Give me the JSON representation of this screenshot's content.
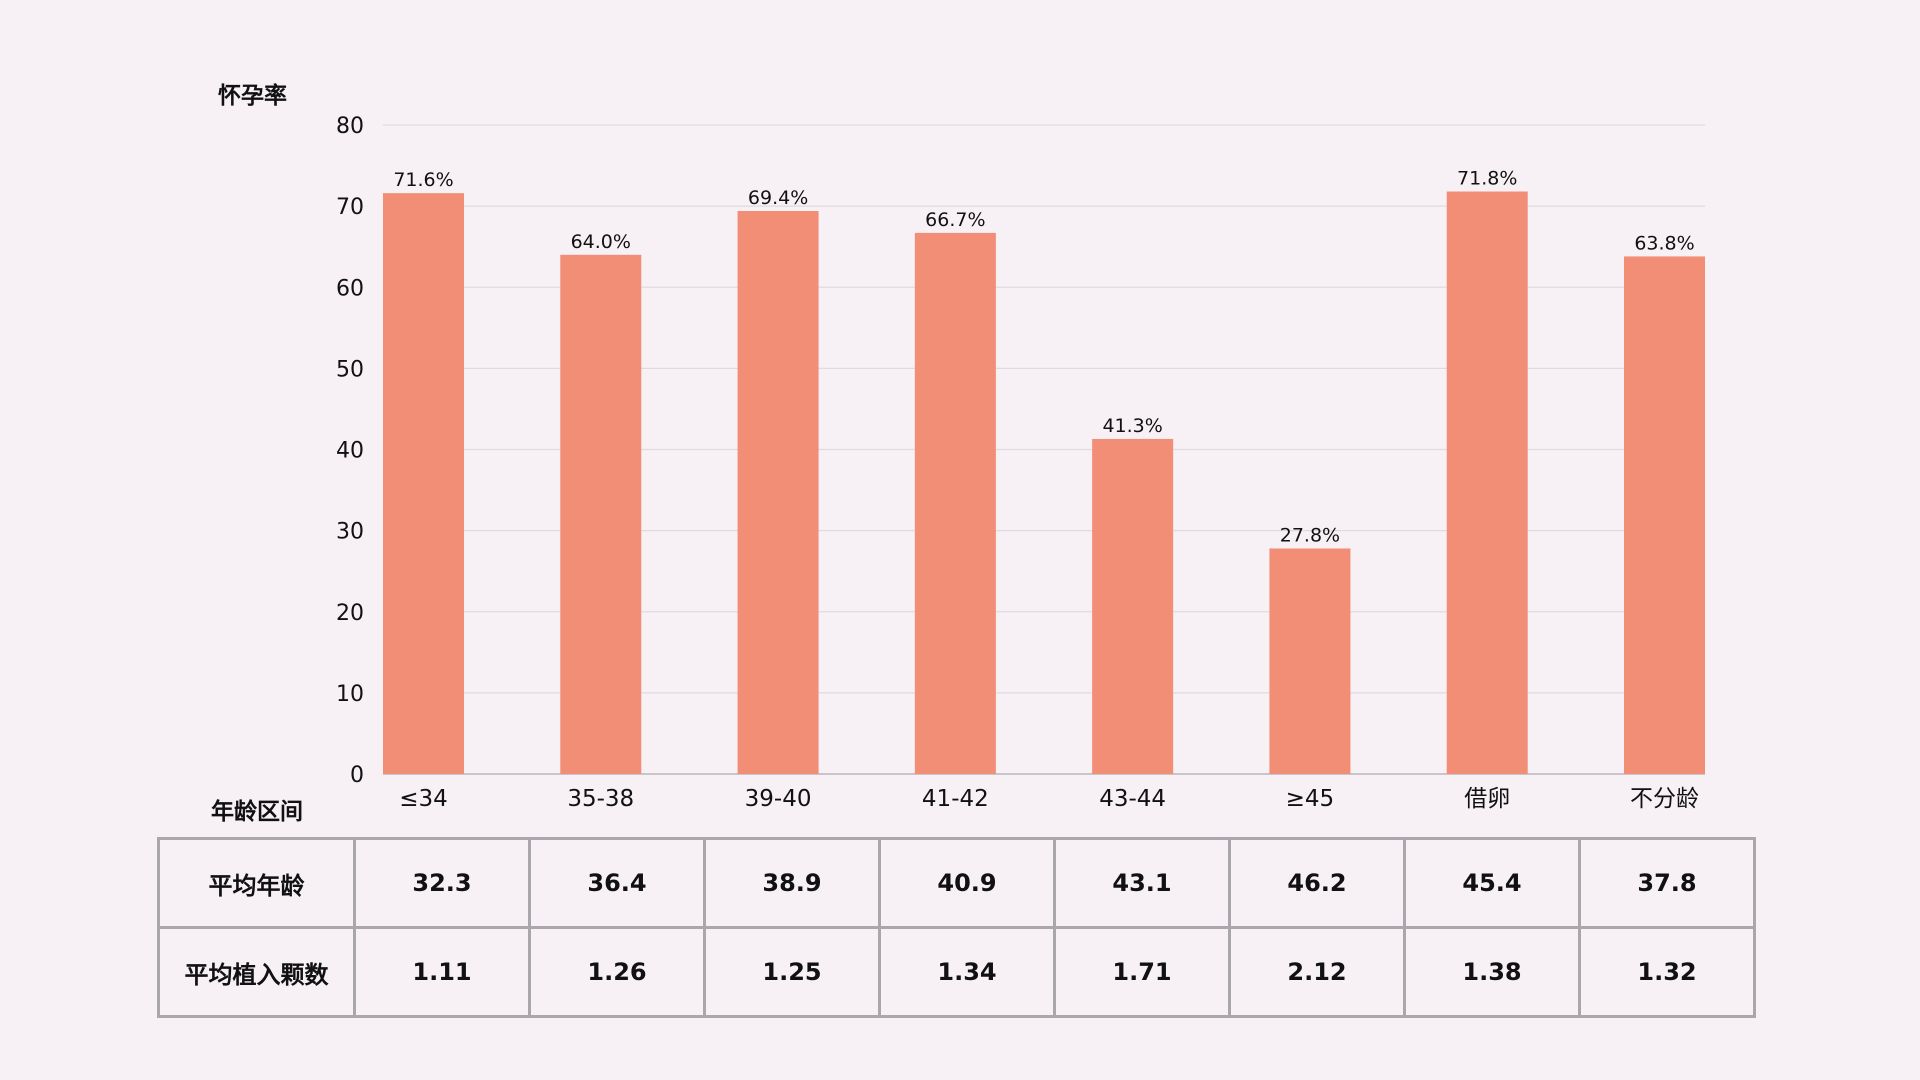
{
  "chart_data": {
    "type": "bar",
    "ylabel": "怀孕率",
    "xlabel": "年龄区间",
    "categories": [
      "≤34",
      "35-38",
      "39-40",
      "41-42",
      "43-44",
      "≥45",
      "借卵",
      "不分龄"
    ],
    "values": [
      71.6,
      64.0,
      69.4,
      66.7,
      41.3,
      27.8,
      71.8,
      63.8
    ],
    "data_labels": [
      "71.6%",
      "64.0%",
      "69.4%",
      "66.7%",
      "41.3%",
      "27.8%",
      "71.8%",
      "63.8%"
    ],
    "ylim": [
      0,
      80
    ],
    "yticks": [
      0,
      10,
      20,
      30,
      40,
      50,
      60,
      70,
      80
    ],
    "grid": true,
    "bar_color": "#f28d76",
    "grid_color": "#dedbe0"
  },
  "table": {
    "rows": [
      {
        "label": "平均年龄",
        "values": [
          "32.3",
          "36.4",
          "38.9",
          "40.9",
          "43.1",
          "46.2",
          "45.4",
          "37.8"
        ]
      },
      {
        "label": "平均植入颗数",
        "values": [
          "1.11",
          "1.26",
          "1.25",
          "1.34",
          "1.71",
          "2.12",
          "1.38",
          "1.32"
        ]
      }
    ]
  }
}
